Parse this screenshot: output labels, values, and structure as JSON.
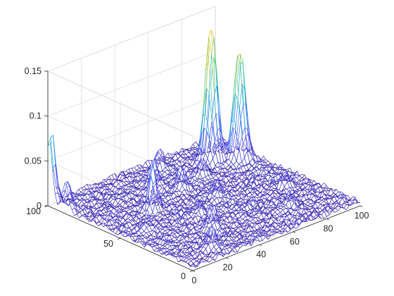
{
  "chart_data": {
    "type": "surface-mesh",
    "title": "",
    "xlabel": "",
    "ylabel": "",
    "zlabel": "",
    "xlim": [
      0,
      100
    ],
    "ylim": [
      0,
      100
    ],
    "zlim": [
      0,
      0.15
    ],
    "xticks": [
      0,
      20,
      40,
      60,
      80,
      100
    ],
    "xtick_labels": [
      "0",
      "20",
      "40",
      "60",
      "80",
      "100"
    ],
    "yticks": [
      0,
      50,
      100
    ],
    "ytick_labels": [
      "0",
      "50",
      "100"
    ],
    "zticks": [
      0,
      0.05,
      0.1,
      0.15
    ],
    "ztick_labels": [
      "0",
      "0.05",
      "0.1",
      "0.15"
    ],
    "grid": true,
    "colormap": [
      "#3e26a8",
      "#4a4bf0",
      "#2e7ff2",
      "#17b0d2",
      "#3cc48c",
      "#a6c43c",
      "#e6c62a",
      "#f9fb15"
    ],
    "noise_level": 0.006,
    "peaks": [
      {
        "x": 82,
        "y": 82,
        "height": 0.155
      },
      {
        "x": 92,
        "y": 74,
        "height": 0.125
      },
      {
        "x": 1,
        "y": 99,
        "height": 0.082
      },
      {
        "x": 1,
        "y": 88,
        "height": 0.035
      },
      {
        "x": 28,
        "y": 60,
        "height": 0.05
      },
      {
        "x": 46,
        "y": 80,
        "height": 0.03
      },
      {
        "x": 52,
        "y": 68,
        "height": 0.028
      },
      {
        "x": 34,
        "y": 26,
        "height": 0.028
      },
      {
        "x": 20,
        "y": 10,
        "height": 0.025
      },
      {
        "x": 58,
        "y": 50,
        "height": 0.018
      },
      {
        "x": 68,
        "y": 72,
        "height": 0.022
      },
      {
        "x": 40,
        "y": 42,
        "height": 0.015
      },
      {
        "x": 75,
        "y": 20,
        "height": 0.014
      },
      {
        "x": 88,
        "y": 38,
        "height": 0.016
      },
      {
        "x": 12,
        "y": 45,
        "height": 0.013
      },
      {
        "x": 60,
        "y": 92,
        "height": 0.02
      },
      {
        "x": 96,
        "y": 96,
        "height": 0.018
      }
    ]
  }
}
